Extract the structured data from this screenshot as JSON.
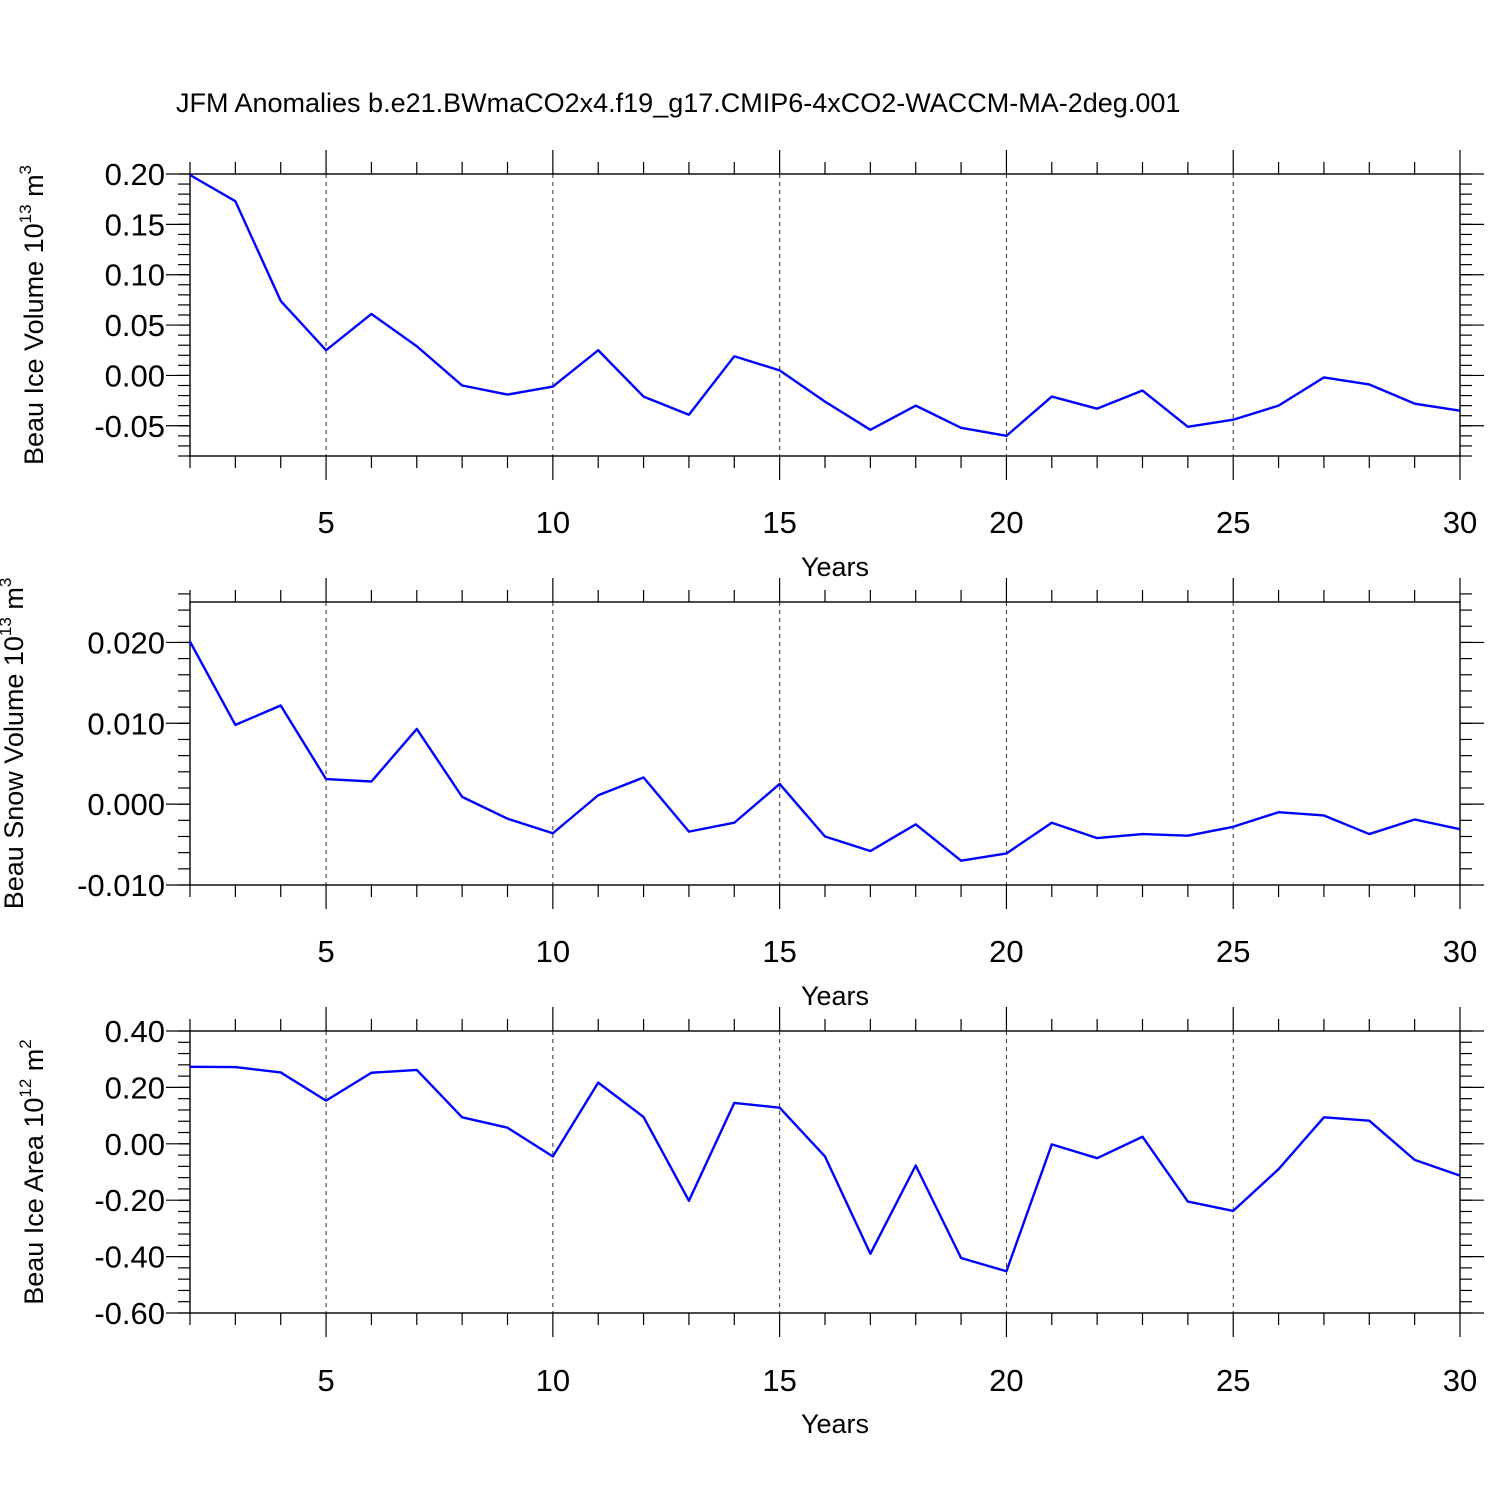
{
  "figure": {
    "title": "JFM Anomalies b.e21.BWmaCO2x4.f19_g17.CMIP6-4xCO2-WACCM-MA-2deg.001"
  },
  "colors": {
    "line": "#0000ff",
    "axis": "#000000",
    "grid": "#333333"
  },
  "chart_data": [
    {
      "type": "line",
      "title": "",
      "xlabel": "Years",
      "ylabel": {
        "base": "Beau Ice Volume 10",
        "exponent": "13",
        "unit": " m",
        "unit_exponent": "3"
      },
      "xlim": [
        2,
        30
      ],
      "ylim": [
        -0.08,
        0.2
      ],
      "x_ticks": [
        5,
        10,
        15,
        20,
        25,
        30
      ],
      "x_tick_labels": [
        "5",
        "10",
        "15",
        "20",
        "25",
        "30"
      ],
      "x_gridlines": [
        5,
        10,
        15,
        20,
        25
      ],
      "y_ticks": [
        0.2,
        0.15,
        0.1,
        0.05,
        0.0,
        -0.05
      ],
      "y_tick_labels": [
        "0.20",
        "0.15",
        "0.10",
        "0.05",
        "0.00",
        "-0.05"
      ],
      "y_minor_step": 0.01,
      "series": [
        {
          "name": "Beau Ice Volume",
          "x": [
            2,
            3,
            4,
            5,
            6,
            7,
            8,
            9,
            10,
            11,
            12,
            13,
            14,
            15,
            16,
            17,
            18,
            19,
            20,
            21,
            22,
            23,
            24,
            25,
            26,
            27,
            28,
            29,
            30
          ],
          "values": [
            0.199,
            0.173,
            0.074,
            0.025,
            0.061,
            0.029,
            -0.01,
            -0.019,
            -0.011,
            0.025,
            -0.021,
            -0.039,
            0.019,
            0.005,
            -0.026,
            -0.054,
            -0.03,
            -0.052,
            -0.06,
            -0.021,
            -0.033,
            -0.015,
            -0.051,
            -0.044,
            -0.03,
            -0.002,
            -0.009,
            -0.028,
            -0.035
          ]
        }
      ]
    },
    {
      "type": "line",
      "title": "",
      "xlabel": "Years",
      "ylabel": {
        "base": "Beau Snow Volume 10",
        "exponent": "13",
        "unit": " m",
        "unit_exponent": "3"
      },
      "xlim": [
        2,
        30
      ],
      "ylim": [
        -0.01,
        0.025
      ],
      "x_ticks": [
        5,
        10,
        15,
        20,
        25,
        30
      ],
      "x_tick_labels": [
        "5",
        "10",
        "15",
        "20",
        "25",
        "30"
      ],
      "x_gridlines": [
        5,
        10,
        15,
        20,
        25
      ],
      "y_ticks": [
        0.02,
        0.01,
        0.0,
        -0.01
      ],
      "y_tick_labels": [
        "0.020",
        "0.010",
        "0.000",
        "-0.010"
      ],
      "y_minor_step": 0.002,
      "series": [
        {
          "name": "Beau Snow Volume",
          "x": [
            2,
            3,
            4,
            5,
            6,
            7,
            8,
            9,
            10,
            11,
            12,
            13,
            14,
            15,
            16,
            17,
            18,
            19,
            20,
            21,
            22,
            23,
            24,
            25,
            26,
            27,
            28,
            29,
            30
          ],
          "values": [
            0.0201,
            0.0098,
            0.0122,
            0.0031,
            0.0028,
            0.0093,
            0.0009,
            -0.0018,
            -0.0036,
            0.0011,
            0.0033,
            -0.0034,
            -0.0023,
            0.0025,
            -0.004,
            -0.0058,
            -0.0025,
            -0.007,
            -0.0061,
            -0.0023,
            -0.0042,
            -0.0037,
            -0.0039,
            -0.0028,
            -0.001,
            -0.0014,
            -0.0037,
            -0.0019,
            -0.0031
          ]
        }
      ]
    },
    {
      "type": "line",
      "title": "",
      "xlabel": "Years",
      "ylabel": {
        "base": "Beau Ice Area 10",
        "exponent": "12",
        "unit": " m",
        "unit_exponent": "2"
      },
      "xlim": [
        2,
        30
      ],
      "ylim": [
        -0.6,
        0.4
      ],
      "x_ticks": [
        5,
        10,
        15,
        20,
        25,
        30
      ],
      "x_tick_labels": [
        "5",
        "10",
        "15",
        "20",
        "25",
        "30"
      ],
      "x_gridlines": [
        5,
        10,
        15,
        20,
        25
      ],
      "y_ticks": [
        0.4,
        0.2,
        0.0,
        -0.2,
        -0.4,
        -0.6
      ],
      "y_tick_labels": [
        "0.40",
        "0.20",
        "0.00",
        "-0.20",
        "-0.40",
        "-0.60"
      ],
      "y_minor_step": 0.04,
      "series": [
        {
          "name": "Beau Ice Area",
          "x": [
            2,
            3,
            4,
            5,
            6,
            7,
            8,
            9,
            10,
            11,
            12,
            13,
            14,
            15,
            16,
            17,
            18,
            19,
            20,
            21,
            22,
            23,
            24,
            25,
            26,
            27,
            28,
            29,
            30
          ],
          "values": [
            0.273,
            0.272,
            0.253,
            0.153,
            0.252,
            0.262,
            0.094,
            0.057,
            -0.045,
            0.217,
            0.095,
            -0.202,
            0.145,
            0.128,
            -0.045,
            -0.39,
            -0.077,
            -0.405,
            -0.452,
            -0.002,
            -0.051,
            0.025,
            -0.205,
            -0.238,
            -0.09,
            0.094,
            0.082,
            -0.057,
            -0.113
          ]
        }
      ]
    }
  ]
}
